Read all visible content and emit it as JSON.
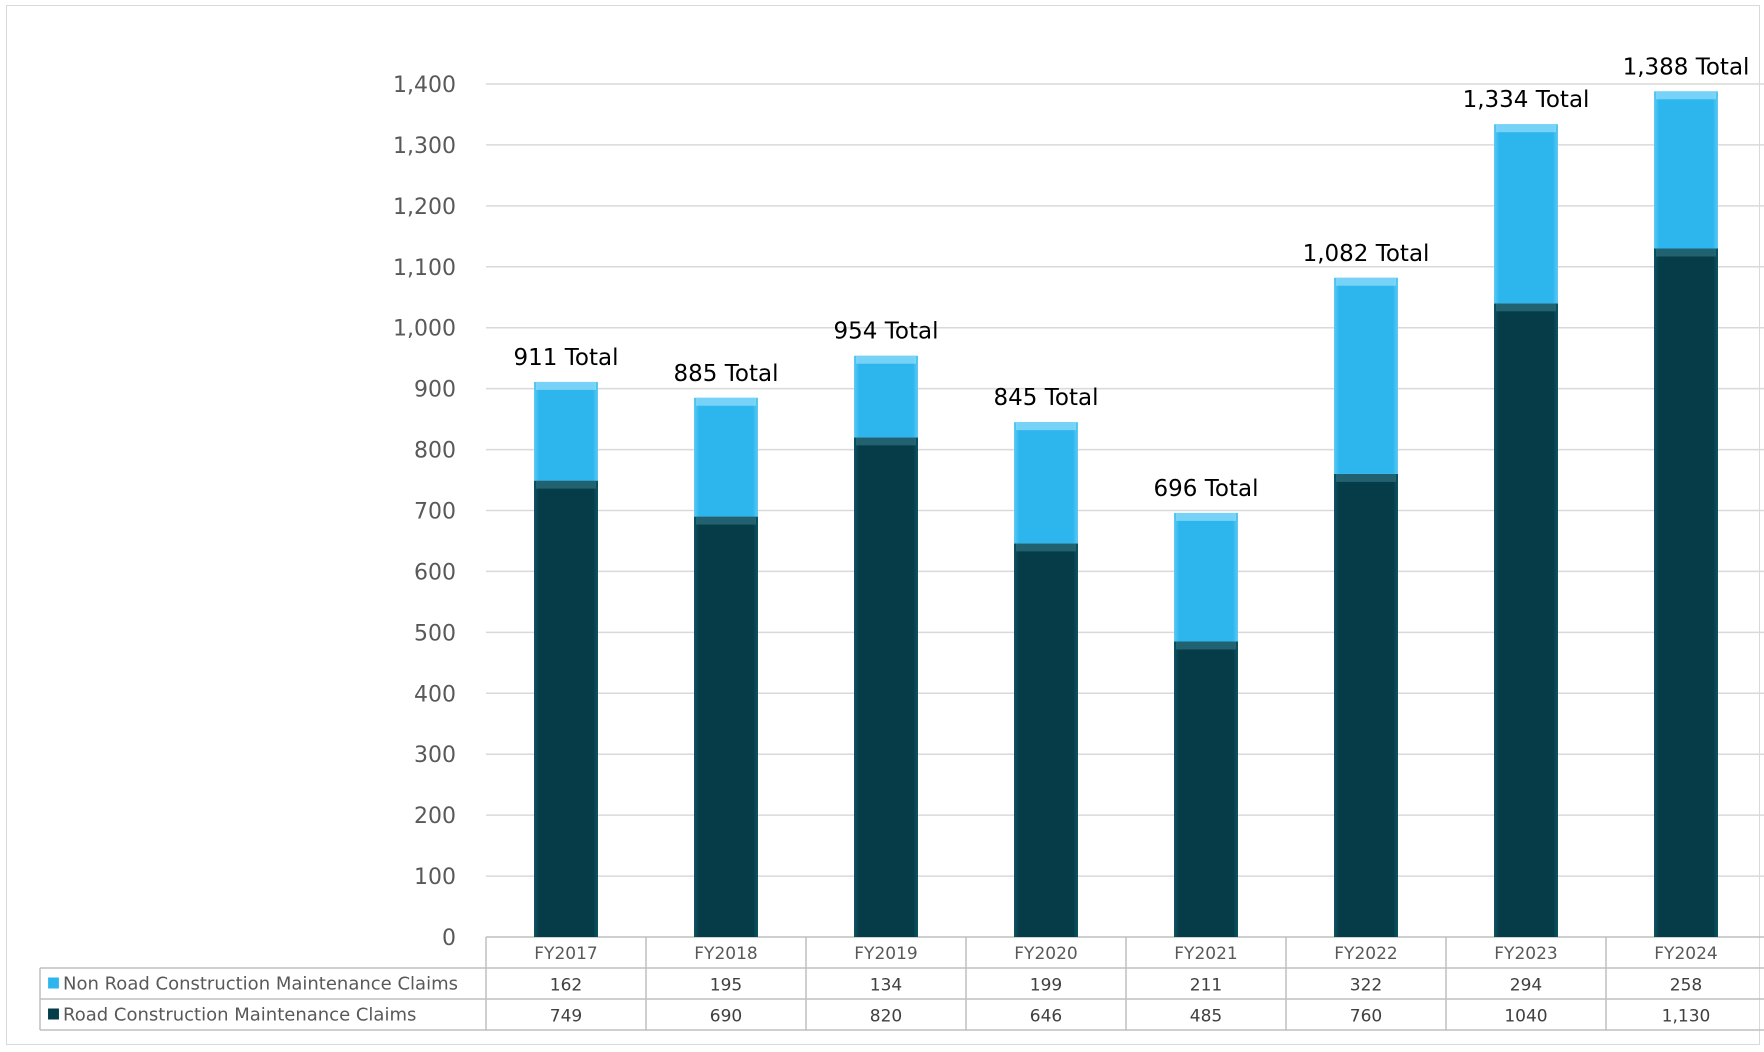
{
  "chart_data": {
    "type": "bar",
    "stacked": true,
    "categories": [
      "FY2017",
      "FY2018",
      "FY2019",
      "FY2020",
      "FY2021",
      "FY2022",
      "FY2023",
      "FY2024"
    ],
    "series": [
      {
        "name": "Road Construction Maintenance Claims",
        "values": [
          749,
          690,
          820,
          646,
          485,
          760,
          1040,
          1130
        ],
        "display": [
          "749",
          "690",
          "820",
          "646",
          "485",
          "760",
          "1040",
          "1,130"
        ],
        "color": "#07404f"
      },
      {
        "name": "Non Road Construction Maintenance Claims",
        "values": [
          162,
          195,
          134,
          199,
          211,
          322,
          294,
          258
        ],
        "display": [
          "162",
          "195",
          "134",
          "199",
          "211",
          "322",
          "294",
          "258"
        ],
        "color": "#2eb6ee"
      }
    ],
    "totals": [
      "911 Total",
      "885 Total",
      "954 Total",
      "845 Total",
      "696 Total",
      "1,082 Total",
      "1,334 Total",
      "1,388 Total"
    ],
    "table_rows": [
      "Non Road Construction Maintenance Claims",
      "Road Construction Maintenance Claims"
    ],
    "ylim": [
      0,
      1400
    ],
    "yticks": [
      "0",
      "100",
      "200",
      "300",
      "400",
      "500",
      "600",
      "700",
      "800",
      "900",
      "1,000",
      "1,100",
      "1,200",
      "1,300",
      "1,400"
    ],
    "xlabel": "",
    "ylabel": "",
    "grid": true,
    "legend": "data-table-below"
  }
}
